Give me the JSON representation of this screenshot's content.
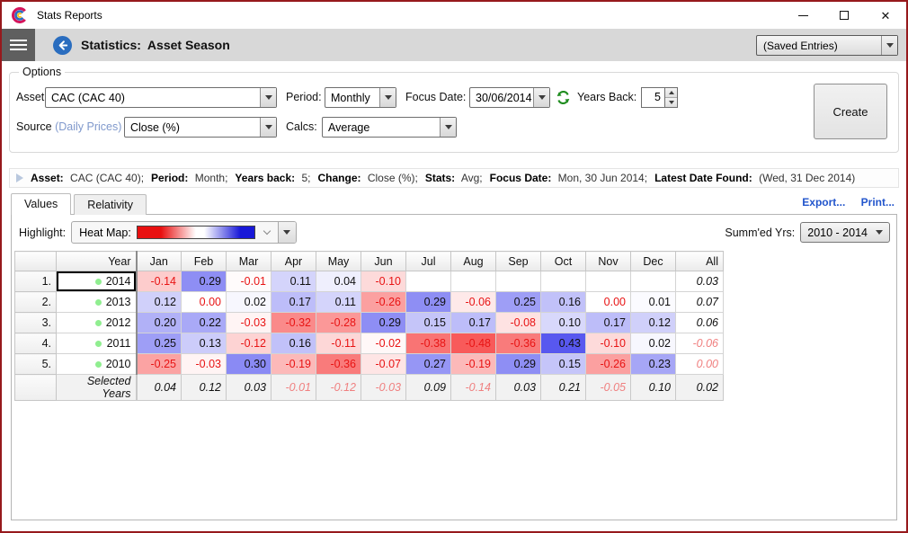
{
  "window": {
    "title": "Stats Reports"
  },
  "appbar": {
    "title_label": "Statistics:",
    "title_value": "Asset Season",
    "saved_entries": "(Saved Entries)"
  },
  "options": {
    "group_label": "Options",
    "asset_label": "Asset:",
    "asset_value": "CAC (CAC 40)",
    "period_label": "Period:",
    "period_value": "Monthly",
    "focus_date_label": "Focus Date:",
    "focus_date_value": "30/06/2014",
    "years_back_label": "Years Back:",
    "years_back_value": "5",
    "source_label": "Source",
    "source_hint": "(Daily Prices)",
    "source_sep": ":",
    "source_value": "Close (%)",
    "calcs_label": "Calcs:",
    "calcs_value": "Average",
    "create_label": "Create"
  },
  "summary": {
    "segments": [
      {
        "label": "Asset:",
        "value": "CAC (CAC 40);"
      },
      {
        "label": "Period:",
        "value": "Month;"
      },
      {
        "label": "Years back:",
        "value": "5;"
      },
      {
        "label": "Change:",
        "value": "Close (%);"
      },
      {
        "label": "Stats:",
        "value": "Avg;"
      },
      {
        "label": "Focus Date:",
        "value": "Mon, 30 Jun 2014;"
      },
      {
        "label": "Latest Date Found:",
        "value": "(Wed, 31 Dec 2014)"
      }
    ]
  },
  "tabs": {
    "values": "Values",
    "relativity": "Relativity"
  },
  "links": {
    "export": "Export...",
    "print": "Print..."
  },
  "toolbar": {
    "highlight_label": "Highlight:",
    "heatmap_label": "Heat Map:",
    "summed_label": "Summ'ed Yrs:",
    "summed_value": "2010 - 2014"
  },
  "table": {
    "year_header": "Year",
    "months": [
      "Jan",
      "Feb",
      "Mar",
      "Apr",
      "May",
      "Jun",
      "Jul",
      "Aug",
      "Sep",
      "Oct",
      "Nov",
      "Dec"
    ],
    "all_header": "All",
    "rows": [
      {
        "num": "1.",
        "year": "2014",
        "focused": true,
        "cells": [
          "-0.14",
          "0.29",
          "-0.01",
          "0.11",
          "0.04",
          "-0.10",
          "",
          "",
          "",
          "",
          "",
          ""
        ],
        "red_cells": [],
        "all": "0.03",
        "all_red": false
      },
      {
        "num": "2.",
        "year": "2013",
        "focused": false,
        "cells": [
          "0.12",
          "0.00",
          "0.02",
          "0.17",
          "0.11",
          "-0.26",
          "0.29",
          "-0.06",
          "0.25",
          "0.16",
          "0.00",
          "0.01"
        ],
        "red_cells": [
          1,
          10
        ],
        "all": "0.07",
        "all_red": false
      },
      {
        "num": "3.",
        "year": "2012",
        "focused": false,
        "cells": [
          "0.20",
          "0.22",
          "-0.03",
          "-0.32",
          "-0.28",
          "0.29",
          "0.15",
          "0.17",
          "-0.08",
          "0.10",
          "0.17",
          "0.12"
        ],
        "red_cells": [],
        "all": "0.06",
        "all_red": false
      },
      {
        "num": "4.",
        "year": "2011",
        "focused": false,
        "cells": [
          "0.25",
          "0.13",
          "-0.12",
          "0.16",
          "-0.11",
          "-0.02",
          "-0.38",
          "-0.48",
          "-0.36",
          "0.43",
          "-0.10",
          "0.02"
        ],
        "red_cells": [],
        "all": "-0.06",
        "all_red": true
      },
      {
        "num": "5.",
        "year": "2010",
        "focused": false,
        "cells": [
          "-0.25",
          "-0.03",
          "0.30",
          "-0.19",
          "-0.36",
          "-0.07",
          "0.27",
          "-0.19",
          "0.29",
          "0.15",
          "-0.26",
          "0.23"
        ],
        "red_cells": [],
        "all": "0.00",
        "all_red": true
      }
    ],
    "summary_row": {
      "label": "Selected Years",
      "cells": [
        "0.04",
        "0.12",
        "0.03",
        "-0.01",
        "-0.12",
        "-0.03",
        "0.09",
        "-0.14",
        "0.03",
        "0.21",
        "-0.05",
        "0.10"
      ],
      "all": "0.02"
    }
  },
  "colors": {
    "heat_positive": "#5050ee",
    "heat_negative": "#f85a5a",
    "heat_scale_max": 0.45,
    "negative_text": "#e81414",
    "italic_negative_text": "#f08080",
    "accent_blue": "#2a6dbf",
    "refresh_green": "#1e8c1e",
    "link_blue": "#2255cc",
    "dot_green": "#90ee90"
  }
}
